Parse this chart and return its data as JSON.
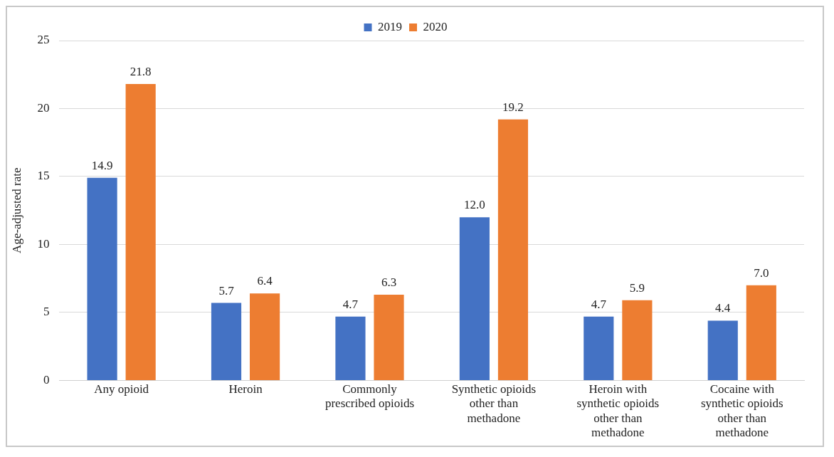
{
  "chart_data": {
    "type": "bar",
    "ylabel": "Age-adjusted rate",
    "categories": [
      [
        "Any opioid"
      ],
      [
        "Heroin"
      ],
      [
        "Commonly",
        "prescribed opioids"
      ],
      [
        "Synthetic opioids",
        "other than",
        "methadone"
      ],
      [
        "Heroin with",
        "synthetic opioids",
        "other than",
        "methadone"
      ],
      [
        "Cocaine with",
        "synthetic opioids",
        "other than",
        "methadone"
      ]
    ],
    "series": [
      {
        "name": "2019",
        "color": "#4472c4",
        "values": [
          14.9,
          5.7,
          4.7,
          12.0,
          4.7,
          4.4
        ],
        "value_labels": [
          "14.9",
          "5.7",
          "4.7",
          "12.0",
          "4.7",
          "4.4"
        ]
      },
      {
        "name": "2020",
        "color": "#ed7d31",
        "values": [
          21.8,
          6.4,
          6.3,
          19.2,
          5.9,
          7.0
        ],
        "value_labels": [
          "21.8",
          "6.4",
          "6.3",
          "19.2",
          "5.9",
          "7.0"
        ]
      }
    ],
    "ylim": [
      0,
      25
    ],
    "yticks": [
      0,
      5,
      10,
      15,
      20,
      25
    ],
    "grid": "y",
    "legend": "top"
  }
}
